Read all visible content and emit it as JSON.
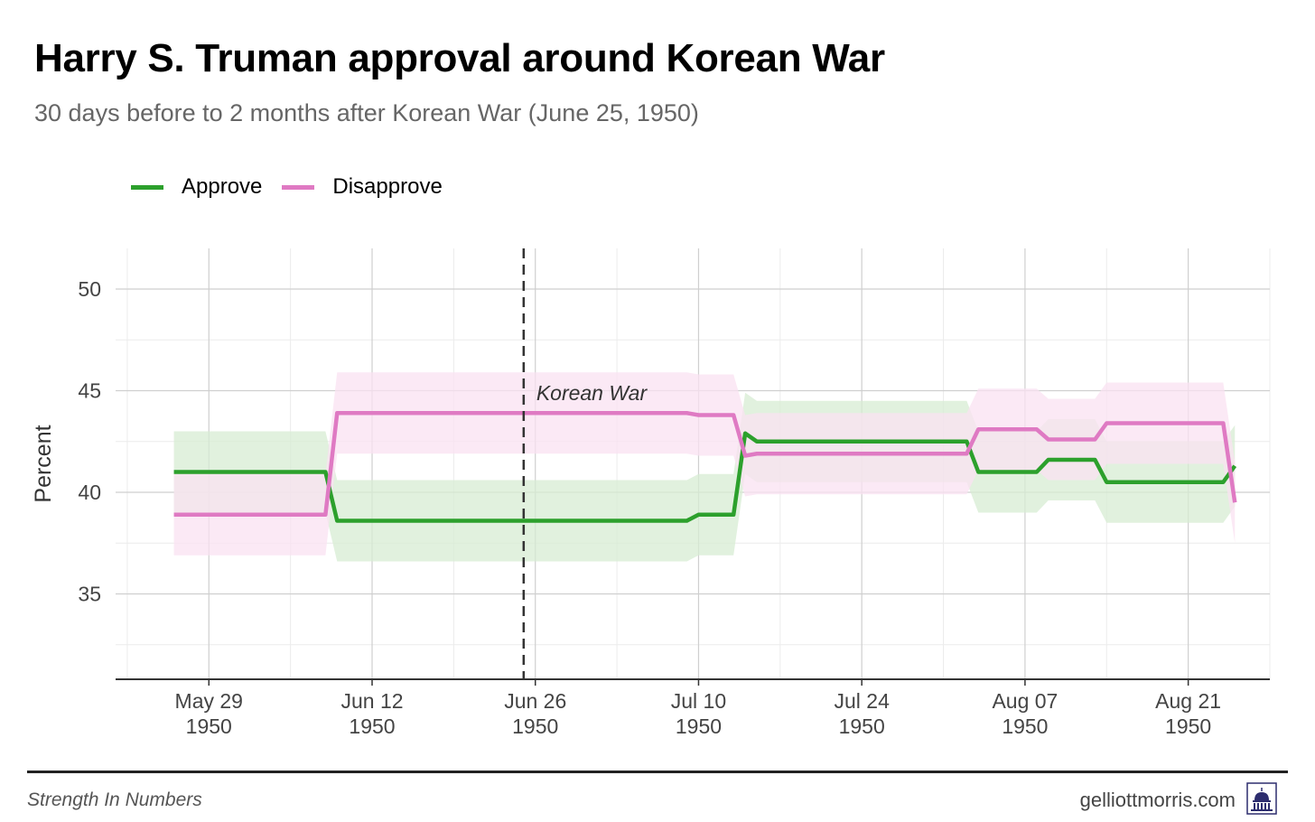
{
  "header": {
    "title": "Harry S. Truman approval around Korean War",
    "subtitle": "30 days before to 2 months after Korean War (June 25, 1950)"
  },
  "footer": {
    "source": "Strength In Numbers",
    "site": "gelliottmorris.com",
    "logo_icon": "capitol-dome-icon"
  },
  "chart_data": {
    "type": "line",
    "title": "Harry S. Truman approval around Korean War",
    "subtitle": "30 days before to 2 months after Korean War (June 25, 1950)",
    "xlabel": "",
    "ylabel": "Percent",
    "ylim": [
      30.8,
      52
    ],
    "xlim": [
      "1950-05-21",
      "1950-08-28"
    ],
    "yticks": [
      35,
      40,
      45,
      50
    ],
    "xticks": [
      {
        "date": "1950-05-29",
        "label1": "May 29",
        "label2": "1950"
      },
      {
        "date": "1950-06-12",
        "label1": "Jun 12",
        "label2": "1950"
      },
      {
        "date": "1950-06-26",
        "label1": "Jun 26",
        "label2": "1950"
      },
      {
        "date": "1950-07-10",
        "label1": "Jul 10",
        "label2": "1950"
      },
      {
        "date": "1950-07-24",
        "label1": "Jul 24",
        "label2": "1950"
      },
      {
        "date": "1950-08-07",
        "label1": "Aug 07",
        "label2": "1950"
      },
      {
        "date": "1950-08-21",
        "label1": "Aug 21",
        "label2": "1950"
      }
    ],
    "grid": true,
    "legend_position": "top-left",
    "annotation": {
      "date": "1950-06-25",
      "label": "Korean War"
    },
    "series": [
      {
        "name": "Approve",
        "color": "#2ca02c",
        "band_color": "#d7ecd3",
        "points": [
          {
            "x": "1950-05-26",
            "y": 41.0,
            "lo": 39.0,
            "hi": 43.0
          },
          {
            "x": "1950-06-08",
            "y": 41.0,
            "lo": 39.0,
            "hi": 43.0
          },
          {
            "x": "1950-06-09",
            "y": 38.6,
            "lo": 36.6,
            "hi": 40.6
          },
          {
            "x": "1950-07-09",
            "y": 38.6,
            "lo": 36.6,
            "hi": 40.6
          },
          {
            "x": "1950-07-10",
            "y": 38.9,
            "lo": 36.9,
            "hi": 40.9
          },
          {
            "x": "1950-07-13",
            "y": 38.9,
            "lo": 36.9,
            "hi": 40.9
          },
          {
            "x": "1950-07-14",
            "y": 42.9,
            "lo": 40.9,
            "hi": 44.9
          },
          {
            "x": "1950-07-15",
            "y": 42.5,
            "lo": 40.5,
            "hi": 44.5
          },
          {
            "x": "1950-08-02",
            "y": 42.5,
            "lo": 40.5,
            "hi": 44.5
          },
          {
            "x": "1950-08-03",
            "y": 41.0,
            "lo": 39.0,
            "hi": 43.0
          },
          {
            "x": "1950-08-08",
            "y": 41.0,
            "lo": 39.0,
            "hi": 43.0
          },
          {
            "x": "1950-08-09",
            "y": 41.6,
            "lo": 39.6,
            "hi": 43.6
          },
          {
            "x": "1950-08-13",
            "y": 41.6,
            "lo": 39.6,
            "hi": 43.6
          },
          {
            "x": "1950-08-14",
            "y": 40.5,
            "lo": 38.5,
            "hi": 42.5
          },
          {
            "x": "1950-08-24",
            "y": 40.5,
            "lo": 38.5,
            "hi": 42.5
          },
          {
            "x": "1950-08-25",
            "y": 41.3,
            "lo": 39.3,
            "hi": 43.3
          }
        ]
      },
      {
        "name": "Disapprove",
        "color": "#df7ac3",
        "band_color": "#f9e1f1",
        "points": [
          {
            "x": "1950-05-26",
            "y": 38.9,
            "lo": 36.9,
            "hi": 40.9
          },
          {
            "x": "1950-06-08",
            "y": 38.9,
            "lo": 36.9,
            "hi": 40.9
          },
          {
            "x": "1950-06-09",
            "y": 43.9,
            "lo": 41.9,
            "hi": 45.9
          },
          {
            "x": "1950-07-09",
            "y": 43.9,
            "lo": 41.9,
            "hi": 45.9
          },
          {
            "x": "1950-07-10",
            "y": 43.8,
            "lo": 41.8,
            "hi": 45.8
          },
          {
            "x": "1950-07-13",
            "y": 43.8,
            "lo": 41.8,
            "hi": 45.8
          },
          {
            "x": "1950-07-14",
            "y": 41.8,
            "lo": 39.8,
            "hi": 43.8
          },
          {
            "x": "1950-07-15",
            "y": 41.9,
            "lo": 39.9,
            "hi": 43.9
          },
          {
            "x": "1950-08-02",
            "y": 41.9,
            "lo": 39.9,
            "hi": 43.9
          },
          {
            "x": "1950-08-03",
            "y": 43.1,
            "lo": 41.1,
            "hi": 45.1
          },
          {
            "x": "1950-08-08",
            "y": 43.1,
            "lo": 41.1,
            "hi": 45.1
          },
          {
            "x": "1950-08-09",
            "y": 42.6,
            "lo": 40.6,
            "hi": 44.6
          },
          {
            "x": "1950-08-13",
            "y": 42.6,
            "lo": 40.6,
            "hi": 44.6
          },
          {
            "x": "1950-08-14",
            "y": 43.4,
            "lo": 41.4,
            "hi": 45.4
          },
          {
            "x": "1950-08-24",
            "y": 43.4,
            "lo": 41.4,
            "hi": 45.4
          },
          {
            "x": "1950-08-25",
            "y": 39.5,
            "lo": 37.5,
            "hi": 41.5
          }
        ]
      }
    ]
  }
}
